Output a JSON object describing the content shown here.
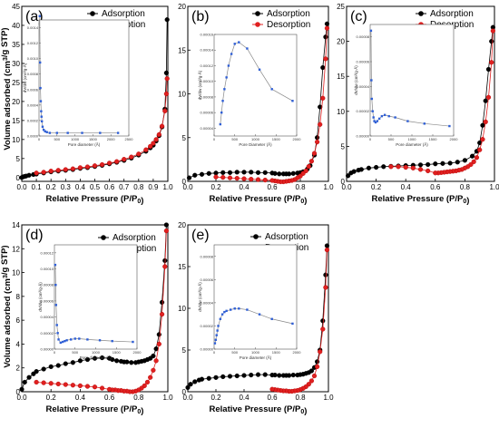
{
  "chart_data": [
    {
      "panel": "(a)",
      "type": "scatter",
      "xlabel": "Relative Pressure (P/P0)",
      "ylabel": "Volume adsorbed (cm3/g STP)",
      "xlim": [
        0.0,
        1.0
      ],
      "ylim": [
        -1,
        45
      ],
      "xticks": [
        "0.0",
        "0.1",
        "0.2",
        "0.3",
        "0.4",
        "0.5",
        "0.6",
        "0.7",
        "0.8",
        "0.9",
        "1.0"
      ],
      "yticks": [
        "0",
        "5",
        "10",
        "15",
        "20",
        "25",
        "30",
        "35",
        "40",
        "45"
      ],
      "legend_position": "top-right",
      "series": [
        {
          "name": "Adsorption",
          "color": "#000000",
          "x": [
            0.0,
            0.01,
            0.02,
            0.03,
            0.05,
            0.08,
            0.1,
            0.15,
            0.2,
            0.25,
            0.3,
            0.35,
            0.4,
            0.45,
            0.5,
            0.55,
            0.6,
            0.65,
            0.7,
            0.75,
            0.8,
            0.85,
            0.88,
            0.9,
            0.92,
            0.94,
            0.96,
            0.98,
            0.99,
            0.995
          ],
          "y": [
            0.0,
            0.2,
            0.3,
            0.4,
            0.6,
            0.8,
            0.9,
            1.2,
            1.5,
            1.7,
            1.9,
            2.1,
            2.4,
            2.6,
            2.9,
            3.2,
            3.6,
            4.0,
            4.5,
            5.1,
            5.9,
            6.9,
            7.8,
            8.5,
            9.6,
            11.0,
            13.3,
            18.0,
            27.5,
            41.5
          ]
        },
        {
          "name": "Desorption",
          "color": "#e02020",
          "x": [
            0.995,
            0.99,
            0.98,
            0.96,
            0.94,
            0.92,
            0.9,
            0.88,
            0.85,
            0.8,
            0.75,
            0.7,
            0.65,
            0.6,
            0.55,
            0.5,
            0.45,
            0.4,
            0.35,
            0.3,
            0.25,
            0.2,
            0.15,
            0.1
          ],
          "y": [
            26.0,
            22.0,
            17.5,
            13.5,
            11.3,
            10.0,
            9.0,
            8.2,
            7.3,
            6.2,
            5.4,
            4.8,
            4.2,
            3.8,
            3.4,
            3.1,
            2.8,
            2.6,
            2.3,
            2.1,
            1.9,
            1.7,
            1.4,
            1.2
          ]
        }
      ],
      "inset": {
        "xlabel": "Pore diameter (Å)",
        "ylabel": "dV/dw (cm³/g·Å)",
        "xlim": [
          0,
          2500
        ],
        "ylim": [
          0,
          0.0015
        ],
        "xticks": [
          "0",
          "500",
          "1000",
          "1500",
          "2000",
          "2500"
        ],
        "yticks": [
          "0.0000",
          "0.0002",
          "0.0004",
          "0.0006",
          "0.0008",
          "0.0010",
          "0.0012",
          "0.0014"
        ],
        "x": [
          20,
          30,
          40,
          50,
          60,
          70,
          80,
          100,
          130,
          170,
          220,
          300,
          500,
          800,
          1200,
          1700,
          2200
        ],
        "y": [
          0.00155,
          0.00095,
          0.00062,
          0.00045,
          0.00032,
          0.00025,
          0.00019,
          0.00012,
          8e-05,
          6e-05,
          5e-05,
          4e-05,
          4e-05,
          4e-05,
          4e-05,
          4e-05,
          4e-05
        ]
      }
    },
    {
      "panel": "(b)",
      "type": "scatter",
      "xlabel": "Relative Pressure (P/P0)",
      "ylabel": "",
      "xlim": [
        0.0,
        1.0
      ],
      "ylim": [
        0,
        20
      ],
      "xticks": [
        "0.0",
        "0.2",
        "0.4",
        "0.6",
        "0.8",
        "1.0"
      ],
      "yticks": [
        "0",
        "5",
        "10",
        "15",
        "20"
      ],
      "legend_position": "top-right",
      "series": [
        {
          "name": "Adsorption",
          "color": "#000000",
          "x": [
            0.01,
            0.05,
            0.1,
            0.15,
            0.2,
            0.25,
            0.3,
            0.35,
            0.4,
            0.45,
            0.5,
            0.55,
            0.6,
            0.62,
            0.65,
            0.68,
            0.7,
            0.72,
            0.75,
            0.78,
            0.8,
            0.82,
            0.85,
            0.87,
            0.9,
            0.92,
            0.94,
            0.96,
            0.98,
            0.99
          ],
          "y": [
            0.4,
            0.7,
            0.8,
            0.9,
            0.95,
            1.0,
            1.0,
            1.05,
            1.05,
            1.05,
            1.0,
            1.0,
            0.95,
            0.9,
            0.85,
            0.85,
            0.85,
            0.85,
            0.9,
            0.95,
            1.0,
            1.1,
            1.4,
            1.8,
            3.0,
            5.0,
            8.5,
            13.0,
            16.5,
            18.0
          ]
        },
        {
          "name": "Desorption",
          "color": "#e02020",
          "x": [
            0.99,
            0.98,
            0.96,
            0.94,
            0.92,
            0.9,
            0.88,
            0.86,
            0.84,
            0.82,
            0.8,
            0.78,
            0.76,
            0.74,
            0.72,
            0.7,
            0.68,
            0.66,
            0.64,
            0.62,
            0.6,
            0.55,
            0.5,
            0.45,
            0.4,
            0.35,
            0.3,
            0.25,
            0.2
          ],
          "y": [
            17.5,
            14.0,
            9.5,
            6.5,
            4.5,
            3.2,
            2.3,
            1.7,
            1.2,
            0.9,
            0.6,
            0.4,
            0.2,
            0.1,
            0.05,
            0.0,
            -0.05,
            -0.05,
            0.0,
            0.05,
            0.1,
            0.15,
            0.2,
            0.25,
            0.3,
            0.35,
            0.4,
            0.45,
            0.5
          ]
        }
      ],
      "inset": {
        "xlabel": "Pore Diameter (Å)",
        "ylabel": "dV/dw (cm³/g·Å)",
        "xlim": [
          0,
          2000
        ],
        "ylim": [
          3e-05,
          0.00016
        ],
        "xticks": [
          "0",
          "500",
          "1000",
          "1500",
          "2000"
        ],
        "yticks": [
          "0.00004",
          "0.00006",
          "0.00008",
          "0.00010",
          "0.00012",
          "0.00014",
          "0.00016"
        ],
        "x": [
          150,
          180,
          210,
          250,
          300,
          350,
          420,
          500,
          600,
          800,
          1100,
          1400,
          1900
        ],
        "y": [
          4.5e-05,
          6e-05,
          7.5e-05,
          9e-05,
          0.000105,
          0.00012,
          0.000135,
          0.000148,
          0.00015,
          0.000142,
          0.000115,
          9e-05,
          7.5e-05
        ]
      }
    },
    {
      "panel": "(c)",
      "type": "scatter",
      "xlabel": "Relative Pressure (P/P0)",
      "ylabel": "",
      "xlim": [
        0.0,
        1.0
      ],
      "ylim": [
        0,
        25
      ],
      "xticks": [
        "0.0",
        "0.2",
        "0.4",
        "0.6",
        "0.8",
        "1.0"
      ],
      "yticks": [
        "0",
        "5",
        "10",
        "15",
        "20",
        "25"
      ],
      "legend_position": "top-right",
      "series": [
        {
          "name": "Adsorption",
          "color": "#000000",
          "x": [
            0.01,
            0.03,
            0.05,
            0.08,
            0.1,
            0.15,
            0.2,
            0.25,
            0.3,
            0.35,
            0.4,
            0.45,
            0.5,
            0.55,
            0.6,
            0.65,
            0.7,
            0.75,
            0.8,
            0.85,
            0.88,
            0.9,
            0.92,
            0.94,
            0.96,
            0.98,
            0.99
          ],
          "y": [
            0.8,
            1.2,
            1.4,
            1.6,
            1.7,
            1.9,
            2.0,
            2.1,
            2.15,
            2.2,
            2.25,
            2.3,
            2.35,
            2.4,
            2.5,
            2.55,
            2.6,
            2.75,
            3.0,
            3.6,
            4.3,
            5.5,
            8.0,
            11.5,
            16.0,
            20.0,
            22.0
          ]
        },
        {
          "name": "Desorption",
          "color": "#e02020",
          "x": [
            0.99,
            0.98,
            0.96,
            0.94,
            0.92,
            0.9,
            0.88,
            0.86,
            0.84,
            0.82,
            0.8,
            0.78,
            0.76,
            0.74,
            0.72,
            0.7,
            0.68,
            0.66,
            0.64,
            0.62,
            0.6,
            0.55,
            0.5,
            0.45,
            0.4,
            0.35,
            0.3
          ],
          "y": [
            21.5,
            17.0,
            12.0,
            8.5,
            6.0,
            4.5,
            3.4,
            2.8,
            2.4,
            2.1,
            1.9,
            1.7,
            1.6,
            1.5,
            1.45,
            1.4,
            1.35,
            1.3,
            1.25,
            1.2,
            1.2,
            1.5,
            1.7,
            1.9,
            2.0,
            2.1,
            2.1
          ]
        }
      ],
      "inset": {
        "xlabel": "Pore diameter (Å)",
        "ylabel": "dV/dw (cm³/g·Å)",
        "xlim": [
          0,
          2000
        ],
        "ylim": [
          0,
          9e-05
        ],
        "xticks": [
          "0",
          "500",
          "1000",
          "1500",
          "2000"
        ],
        "yticks": [
          "0.00000",
          "0.00002",
          "0.00004",
          "0.00006",
          "0.00008"
        ],
        "x": [
          20,
          30,
          40,
          60,
          80,
          100,
          130,
          170,
          220,
          280,
          350,
          450,
          600,
          900,
          1300,
          1900
        ],
        "y": [
          8.5e-05,
          4.5e-05,
          3e-05,
          2e-05,
          1.5e-05,
          1.2e-05,
          1.1e-05,
          1.2e-05,
          1.4e-05,
          1.6e-05,
          1.7e-05,
          1.6e-05,
          1.5e-05,
          1.2e-05,
          1e-05,
          8e-06
        ]
      }
    },
    {
      "panel": "(d)",
      "type": "scatter",
      "xlabel": "Relative Pressure (P/P0)",
      "ylabel": "Volume adsorbed (cm3/g STP)",
      "xlim": [
        0.0,
        1.0
      ],
      "ylim": [
        0,
        14
      ],
      "xticks": [
        "0.0",
        "0.2",
        "0.4",
        "0.6",
        "0.8",
        "1.0"
      ],
      "yticks": [
        "0",
        "2",
        "4",
        "6",
        "8",
        "10",
        "12",
        "14"
      ],
      "legend_position": "top-right",
      "series": [
        {
          "name": "Adsorption",
          "color": "#000000",
          "x": [
            0.0,
            0.02,
            0.05,
            0.08,
            0.1,
            0.15,
            0.2,
            0.25,
            0.3,
            0.35,
            0.4,
            0.45,
            0.5,
            0.55,
            0.6,
            0.62,
            0.65,
            0.68,
            0.7,
            0.72,
            0.75,
            0.78,
            0.8,
            0.82,
            0.84,
            0.86,
            0.88,
            0.9,
            0.92,
            0.94,
            0.96,
            0.98,
            0.99
          ],
          "y": [
            0.2,
            0.8,
            1.2,
            1.5,
            1.7,
            1.9,
            2.1,
            2.2,
            2.35,
            2.45,
            2.6,
            2.7,
            2.8,
            2.85,
            2.8,
            2.7,
            2.6,
            2.55,
            2.5,
            2.5,
            2.45,
            2.45,
            2.5,
            2.55,
            2.6,
            2.7,
            2.8,
            3.0,
            3.6,
            4.8,
            7.5,
            11.0,
            14.0
          ]
        },
        {
          "name": "Desorption",
          "color": "#e02020",
          "x": [
            0.99,
            0.98,
            0.96,
            0.94,
            0.92,
            0.9,
            0.88,
            0.86,
            0.84,
            0.82,
            0.8,
            0.78,
            0.76,
            0.74,
            0.72,
            0.7,
            0.68,
            0.66,
            0.64,
            0.62,
            0.6,
            0.55,
            0.5,
            0.45,
            0.4,
            0.35,
            0.3,
            0.25,
            0.2,
            0.15,
            0.1
          ],
          "y": [
            13.5,
            10.5,
            6.5,
            4.0,
            2.6,
            1.8,
            1.2,
            0.8,
            0.5,
            0.3,
            0.15,
            0.05,
            0.0,
            0.0,
            0.05,
            0.05,
            0.1,
            0.1,
            0.15,
            0.15,
            0.2,
            0.3,
            0.4,
            0.45,
            0.5,
            0.55,
            0.6,
            0.65,
            0.7,
            0.75,
            0.8
          ]
        }
      ],
      "inset": {
        "xlabel": "Pore diameter (Å)",
        "ylabel": "dV/dw (cm³/g·Å)",
        "xlim": [
          0,
          2000
        ],
        "ylim": [
          0,
          0.00013
        ],
        "xticks": [
          "0",
          "500",
          "1000",
          "1500",
          "2000"
        ],
        "yticks": [
          "0.00000",
          "0.00002",
          "0.00004",
          "0.00006",
          "0.00008",
          "0.00010",
          "0.00012"
        ],
        "x": [
          20,
          30,
          40,
          60,
          80,
          100,
          150,
          200,
          250,
          300,
          400,
          500,
          600,
          800,
          1100,
          1400,
          1900
        ],
        "y": [
          0.000105,
          8e-05,
          5.5e-05,
          3e-05,
          2e-05,
          1.2e-05,
          8e-06,
          9e-06,
          1e-05,
          1.1e-05,
          1.2e-05,
          1.3e-05,
          1.3e-05,
          1.2e-05,
          1.1e-05,
          1e-05,
          9e-06
        ]
      }
    },
    {
      "panel": "(e)",
      "type": "scatter",
      "xlabel": "Relative Pressure (P/P0)",
      "ylabel": "",
      "xlim": [
        0.0,
        1.0
      ],
      "ylim": [
        0,
        20
      ],
      "xticks": [
        "0.0",
        "0.2",
        "0.4",
        "0.6",
        "0.8",
        "1.0"
      ],
      "yticks": [
        "0",
        "5",
        "10",
        "15",
        "20"
      ],
      "legend_position": "top-right",
      "series": [
        {
          "name": "Adsorption",
          "color": "#000000",
          "x": [
            0.0,
            0.02,
            0.05,
            0.08,
            0.1,
            0.15,
            0.2,
            0.25,
            0.3,
            0.35,
            0.4,
            0.45,
            0.5,
            0.55,
            0.6,
            0.62,
            0.65,
            0.68,
            0.7,
            0.72,
            0.75,
            0.78,
            0.8,
            0.82,
            0.84,
            0.86,
            0.88,
            0.9,
            0.92,
            0.94,
            0.96,
            0.98,
            0.99
          ],
          "y": [
            0.5,
            0.9,
            1.2,
            1.4,
            1.5,
            1.6,
            1.7,
            1.8,
            1.85,
            1.9,
            1.95,
            2.0,
            2.05,
            2.05,
            2.0,
            2.0,
            1.95,
            1.95,
            1.95,
            1.95,
            2.0,
            2.0,
            2.05,
            2.1,
            2.2,
            2.3,
            2.5,
            2.9,
            3.6,
            5.0,
            8.5,
            14.0,
            17.5
          ]
        },
        {
          "name": "Desorption",
          "color": "#e02020",
          "x": [
            0.99,
            0.98,
            0.96,
            0.94,
            0.92,
            0.9,
            0.88,
            0.86,
            0.84,
            0.82,
            0.8,
            0.78,
            0.76,
            0.74,
            0.72,
            0.7,
            0.68,
            0.66,
            0.64,
            0.62,
            0.6
          ],
          "y": [
            17.0,
            12.5,
            7.5,
            4.8,
            3.0,
            1.9,
            1.3,
            0.9,
            0.6,
            0.4,
            0.25,
            0.15,
            0.1,
            0.05,
            0.05,
            0.1,
            0.1,
            0.15,
            0.2,
            0.25,
            0.3
          ]
        }
      ],
      "inset": {
        "xlabel": "Pore diameter (Å)",
        "ylabel": "dV/dw (cm³/g·Å)",
        "xlim": [
          0,
          2000
        ],
        "ylim": [
          0,
          9e-05
        ],
        "xticks": [
          "0",
          "500",
          "1000",
          "1500",
          "2000"
        ],
        "yticks": [
          "0.00000",
          "0.00002",
          "0.00004",
          "0.00006",
          "0.00008"
        ],
        "x": [
          20,
          40,
          60,
          80,
          100,
          150,
          200,
          250,
          300,
          400,
          500,
          600,
          800,
          1100,
          1400,
          1900
        ],
        "y": [
          5e-06,
          8e-06,
          1.2e-05,
          1.6e-05,
          2e-05,
          2.6e-05,
          3e-05,
          3.2e-05,
          3.3e-05,
          3.4e-05,
          3.5e-05,
          3.5e-05,
          3.4e-05,
          3e-05,
          2.6e-05,
          2.2e-05
        ]
      }
    }
  ]
}
